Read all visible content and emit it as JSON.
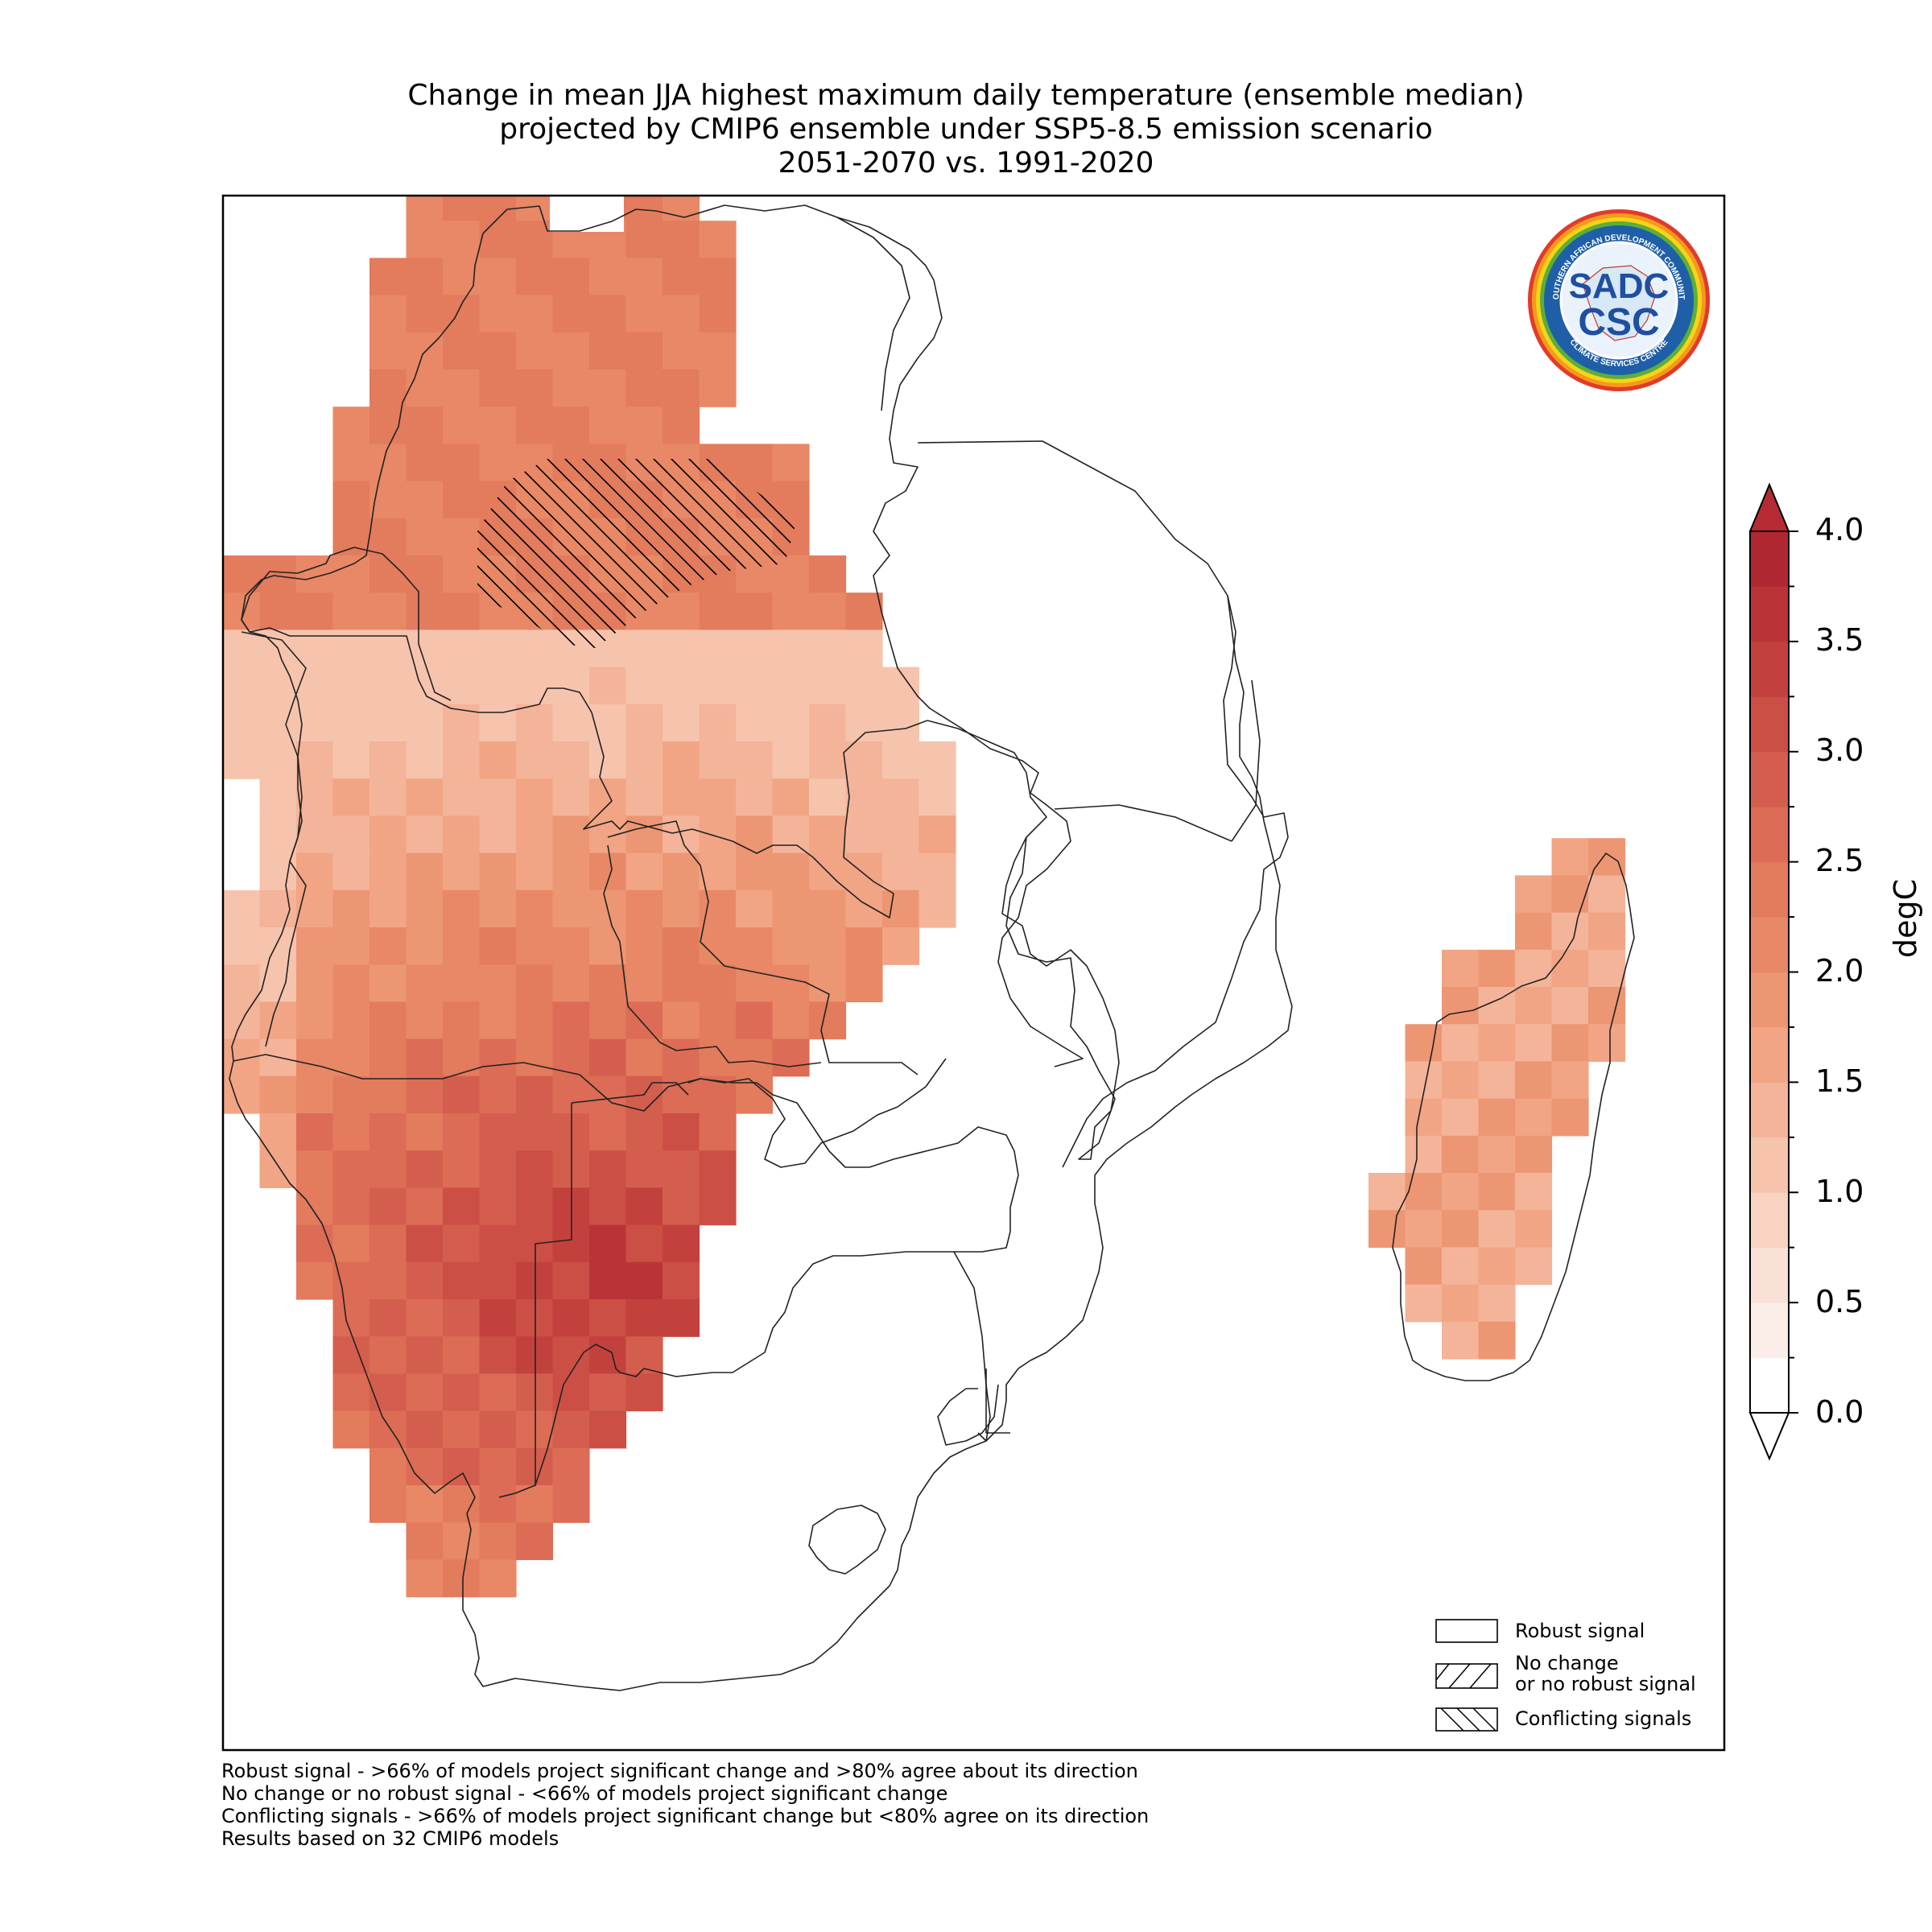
{
  "title": {
    "line1": "Change in mean JJA highest maximum daily temperature (ensemble median)",
    "line2": "projected by CMIP6 ensemble under SSP5-8.5 emission scenario",
    "line3": "2051-2070 vs. 1991-2020"
  },
  "colorbar": {
    "unit": "degC",
    "ticks": [
      "4.0",
      "3.5",
      "3.0",
      "2.5",
      "2.0",
      "1.5",
      "1.0",
      "0.5",
      "0.0"
    ],
    "range": [
      0.0,
      4.0
    ],
    "extend": "both",
    "colors": [
      "#ffffff",
      "#fbe9e1",
      "#f9ddd0",
      "#f8cdb8",
      "#f5bb9f",
      "#f3ac89",
      "#ee9a75",
      "#e98b66",
      "#e47a5c",
      "#dd6b54",
      "#d55c4c",
      "#cc4c44",
      "#c23c3b",
      "#b62b33"
    ]
  },
  "legend": {
    "robust": "Robust signal",
    "nochange_1": "No change",
    "nochange_2": "or no robust signal",
    "conflicting": "Conflicting signals"
  },
  "footnotes": [
    "Robust signal - >66% of models project significant change and >80% agree about its direction",
    "No change or no robust signal - <66% of models project significant change",
    "Conflicting signals - >66% of models project significant change but <80% agree on its direction",
    "Results based on 32 CMIP6 models"
  ],
  "logo": {
    "text_main": "SADC",
    "text_sub": "CSC",
    "ring_top": "SOUTHERN AFRICAN DEVELOPMENT COMMUNITY",
    "ring_bottom": "CLIMATE SERVICES CENTRE"
  }
}
